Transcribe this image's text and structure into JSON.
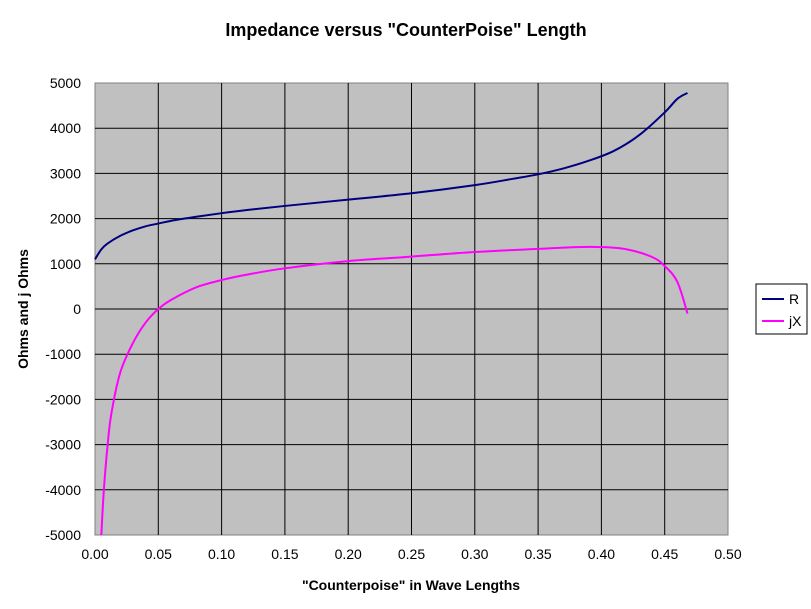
{
  "chart_data": {
    "type": "line",
    "title": "Impedance versus \"CounterPoise\" Length",
    "xlabel": "\"Counterpoise\" in Wave Lengths",
    "ylabel": "Ohms and j Ohms",
    "xlim": [
      0,
      0.5
    ],
    "ylim": [
      -5000,
      5000
    ],
    "x_ticks": [
      "0.00",
      "0.05",
      "0.10",
      "0.15",
      "0.20",
      "0.25",
      "0.30",
      "0.35",
      "0.40",
      "0.45",
      "0.50"
    ],
    "y_ticks": [
      "5000",
      "4000",
      "3000",
      "2000",
      "1000",
      "0",
      "-1000",
      "-2000",
      "-3000",
      "-4000",
      "-5000"
    ],
    "grid": true,
    "legend_position": "right",
    "plot_background": "#c0c0c0",
    "series": [
      {
        "name": "R",
        "color": "#000080",
        "points": [
          [
            0.0,
            1100
          ],
          [
            0.005,
            1320
          ],
          [
            0.01,
            1450
          ],
          [
            0.02,
            1620
          ],
          [
            0.03,
            1740
          ],
          [
            0.04,
            1830
          ],
          [
            0.05,
            1890
          ],
          [
            0.06,
            1950
          ],
          [
            0.08,
            2040
          ],
          [
            0.1,
            2120
          ],
          [
            0.12,
            2190
          ],
          [
            0.15,
            2280
          ],
          [
            0.2,
            2420
          ],
          [
            0.25,
            2560
          ],
          [
            0.3,
            2740
          ],
          [
            0.33,
            2880
          ],
          [
            0.35,
            2980
          ],
          [
            0.37,
            3110
          ],
          [
            0.39,
            3280
          ],
          [
            0.41,
            3500
          ],
          [
            0.43,
            3850
          ],
          [
            0.45,
            4350
          ],
          [
            0.46,
            4650
          ],
          [
            0.468,
            4780
          ]
        ]
      },
      {
        "name": "jX",
        "color": "#ff00ff",
        "points": [
          [
            0.005,
            -5000
          ],
          [
            0.007,
            -4000
          ],
          [
            0.01,
            -3000
          ],
          [
            0.013,
            -2300
          ],
          [
            0.02,
            -1400
          ],
          [
            0.03,
            -750
          ],
          [
            0.04,
            -300
          ],
          [
            0.05,
            0
          ],
          [
            0.06,
            200
          ],
          [
            0.08,
            480
          ],
          [
            0.1,
            640
          ],
          [
            0.12,
            760
          ],
          [
            0.15,
            900
          ],
          [
            0.2,
            1060
          ],
          [
            0.25,
            1160
          ],
          [
            0.3,
            1260
          ],
          [
            0.35,
            1330
          ],
          [
            0.38,
            1370
          ],
          [
            0.4,
            1370
          ],
          [
            0.42,
            1320
          ],
          [
            0.44,
            1150
          ],
          [
            0.45,
            950
          ],
          [
            0.46,
            600
          ],
          [
            0.468,
            -100
          ]
        ]
      }
    ]
  }
}
